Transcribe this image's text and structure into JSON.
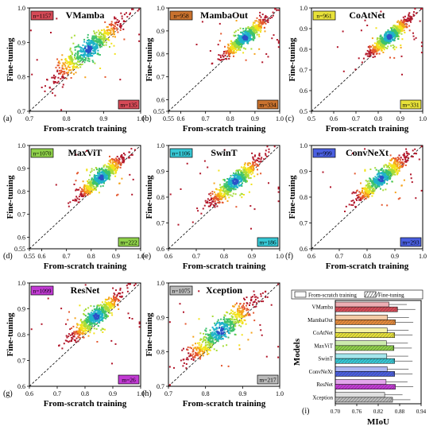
{
  "panels": [
    {
      "id": "a",
      "letter": "(a)",
      "title": "VMamba",
      "n": "n=1157",
      "m": "m=135",
      "badge": "#d64a57",
      "range": [
        0.7,
        1.0
      ],
      "ticks": [
        "0.7",
        "0.8",
        "0.9",
        "1.0"
      ],
      "ylabel": "Fine-tuning",
      "xlabel": "From-scratch training"
    },
    {
      "id": "b",
      "letter": "(b)",
      "title": "MambaOut",
      "n": "n=958",
      "m": "m=334",
      "badge": "#c9722e",
      "range": [
        0.55,
        1.0
      ],
      "ticks": [
        "0.55",
        "0.6",
        "0.7",
        "0.8",
        "0.9",
        "1.0"
      ],
      "ylabel": "Fine-tuning",
      "xlabel": "From-scratch training"
    },
    {
      "id": "c",
      "letter": "(c)",
      "title": "CoAtNet",
      "n": "n=961",
      "m": "m=331",
      "badge": "#e8e23a",
      "range": [
        0.5,
        1.0
      ],
      "ticks": [
        "0.5",
        "0.6",
        "0.7",
        "0.8",
        "0.9",
        "1.0"
      ],
      "ylabel": "Fine-tuning",
      "xlabel": "From-scratch training"
    },
    {
      "id": "d",
      "letter": "(d)",
      "title": "MaxViT",
      "n": "n=1070",
      "m": "m=222",
      "badge": "#8fd14a",
      "range": [
        0.55,
        1.0
      ],
      "ticks": [
        "0.55",
        "0.6",
        "0.7",
        "0.8",
        "0.9",
        "1.0"
      ],
      "ylabel": "Fine-tuning",
      "xlabel": "From-scratch training"
    },
    {
      "id": "e",
      "letter": "(e)",
      "title": "SwinT",
      "n": "n=1106",
      "m": "m=186",
      "badge": "#36c7d4",
      "range": [
        0.6,
        1.0
      ],
      "ticks": [
        "0.6",
        "0.7",
        "0.8",
        "0.9",
        "1.0"
      ],
      "ylabel": "Fine-tuning",
      "xlabel": "From-scratch training"
    },
    {
      "id": "f",
      "letter": "(f)",
      "title": "ConvNeXt",
      "n": "n=999",
      "m": "m=293",
      "badge": "#4a5fe0",
      "range": [
        0.6,
        1.0
      ],
      "ticks": [
        "0.6",
        "0.7",
        "0.8",
        "0.9",
        "1.0"
      ],
      "ylabel": "Fine-tuning",
      "xlabel": "From-scratch training"
    },
    {
      "id": "g",
      "letter": "(g)",
      "title": "ResNet",
      "n": "n=1099",
      "m": "m=26",
      "badge": "#c23ad4",
      "range": [
        0.6,
        1.0
      ],
      "ticks": [
        "0.6",
        "0.7",
        "0.8",
        "0.9",
        "1.0"
      ],
      "ylabel": "Fine-tuning",
      "xlabel": "From-scratch training"
    },
    {
      "id": "h",
      "letter": "(h)",
      "title": "Xception",
      "n": "n=1075",
      "m": "m=217",
      "badge": "#b9b9b9",
      "range": [
        0.7,
        1.0
      ],
      "ticks": [
        "0.7",
        "0.8",
        "0.9",
        "1.0"
      ],
      "ylabel": "Fine-tuning",
      "xlabel": "From-scratch training"
    }
  ],
  "chart_data": [
    {
      "type": "scatter",
      "title": "VMamba",
      "xlabel": "From-scratch training",
      "ylabel": "Fine-tuning",
      "xlim": [
        0.7,
        1.0
      ],
      "ylim": [
        0.7,
        1.0
      ],
      "annotations": [
        "n=1157",
        "m=135"
      ],
      "reference_line": "y = x (dashed)",
      "cluster_center": [
        0.86,
        0.88
      ]
    },
    {
      "type": "scatter",
      "title": "MambaOut",
      "xlabel": "From-scratch training",
      "ylabel": "Fine-tuning",
      "xlim": [
        0.55,
        1.0
      ],
      "ylim": [
        0.55,
        1.0
      ],
      "annotations": [
        "n=958",
        "m=334"
      ],
      "reference_line": "y = x (dashed)",
      "cluster_center": [
        0.86,
        0.87
      ]
    },
    {
      "type": "scatter",
      "title": "CoAtNet",
      "xlabel": "From-scratch training",
      "ylabel": "Fine-tuning",
      "xlim": [
        0.5,
        1.0
      ],
      "ylim": [
        0.5,
        1.0
      ],
      "annotations": [
        "n=961",
        "m=331"
      ],
      "reference_line": "y = x (dashed)",
      "cluster_center": [
        0.85,
        0.86
      ]
    },
    {
      "type": "scatter",
      "title": "MaxViT",
      "xlabel": "From-scratch training",
      "ylabel": "Fine-tuning",
      "xlim": [
        0.55,
        1.0
      ],
      "ylim": [
        0.55,
        1.0
      ],
      "annotations": [
        "n=1070",
        "m=222"
      ],
      "reference_line": "y = x (dashed)",
      "cluster_center": [
        0.84,
        0.86
      ]
    },
    {
      "type": "scatter",
      "title": "SwinT",
      "xlabel": "From-scratch training",
      "ylabel": "Fine-tuning",
      "xlim": [
        0.6,
        1.0
      ],
      "ylim": [
        0.6,
        1.0
      ],
      "annotations": [
        "n=1106",
        "m=186"
      ],
      "reference_line": "y = x (dashed)",
      "cluster_center": [
        0.84,
        0.86
      ]
    },
    {
      "type": "scatter",
      "title": "ConvNeXt",
      "xlabel": "From-scratch training",
      "ylabel": "Fine-tuning",
      "xlim": [
        0.6,
        1.0
      ],
      "ylim": [
        0.6,
        1.0
      ],
      "annotations": [
        "n=999",
        "m=293"
      ],
      "reference_line": "y = x (dashed)",
      "cluster_center": [
        0.85,
        0.87
      ]
    },
    {
      "type": "scatter",
      "title": "ResNet",
      "xlabel": "From-scratch training",
      "ylabel": "Fine-tuning",
      "xlim": [
        0.6,
        1.0
      ],
      "ylim": [
        0.6,
        1.0
      ],
      "annotations": [
        "n=1099",
        "m=26"
      ],
      "reference_line": "y = x (dashed)",
      "cluster_center": [
        0.84,
        0.87
      ]
    },
    {
      "type": "scatter",
      "title": "Xception",
      "xlabel": "From-scratch training",
      "ylabel": "Fine-tuning",
      "xlim": [
        0.7,
        1.0
      ],
      "ylim": [
        0.7,
        1.0
      ],
      "annotations": [
        "n=1075",
        "m=217"
      ],
      "reference_line": "y = x (dashed)",
      "cluster_center": [
        0.84,
        0.86
      ]
    },
    {
      "type": "bar",
      "orientation": "horizontal",
      "letter": "(i)",
      "xlabel": "MIoU",
      "ylabel": "Models",
      "xlim": [
        0.7,
        0.94
      ],
      "ticks": [
        "0.70",
        "0.76",
        "0.82",
        "0.88",
        "0.94"
      ],
      "legend": [
        "From-scratch training",
        "Fine-tuning"
      ],
      "legend_position": "top",
      "categories": [
        "VMamba",
        "MambaOut",
        "CoAtNet",
        "MaxViT",
        "SwinT",
        "ConvNeXt",
        "ResNet",
        "Xception"
      ],
      "colors": [
        "#d64a57",
        "#e58a3a",
        "#e8e23a",
        "#8fd14a",
        "#36c7d4",
        "#4a5fe0",
        "#c23ad4",
        "#b9b9b9"
      ],
      "series": [
        {
          "name": "From-scratch training",
          "values": [
            0.85,
            0.846,
            0.845,
            0.843,
            0.844,
            0.845,
            0.842,
            0.838
          ],
          "errors": [
            0.05,
            0.06,
            0.06,
            0.06,
            0.06,
            0.06,
            0.06,
            0.05
          ]
        },
        {
          "name": "Fine-tuning",
          "values": [
            0.874,
            0.868,
            0.866,
            0.864,
            0.866,
            0.866,
            0.868,
            0.86
          ],
          "errors": [
            0.05,
            0.05,
            0.05,
            0.05,
            0.05,
            0.05,
            0.05,
            0.05
          ]
        }
      ]
    }
  ]
}
